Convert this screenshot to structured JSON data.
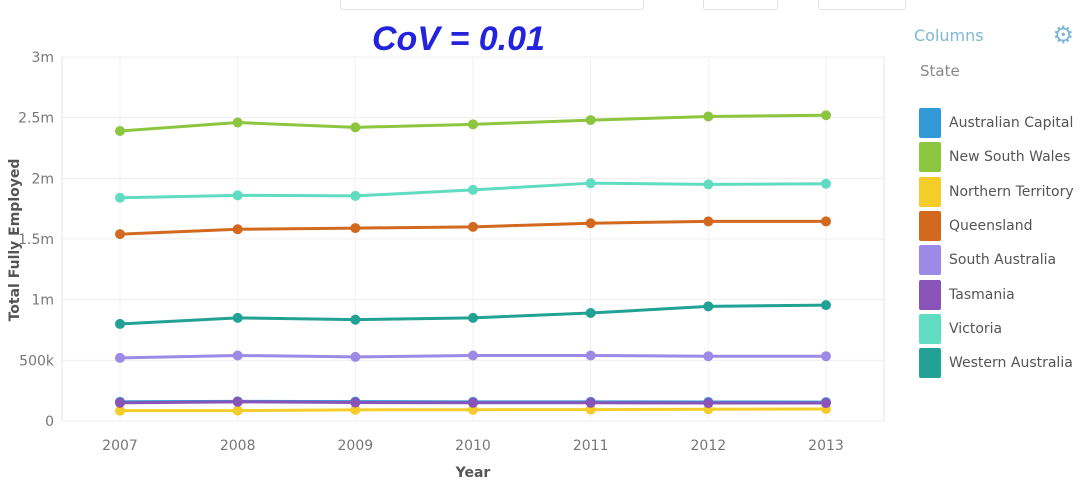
{
  "annotation": "CoV = 0.01",
  "legend": {
    "title": "Columns",
    "subtitle": "State",
    "icon": "gear-icon"
  },
  "chart_data": {
    "type": "line",
    "xlabel": "Year",
    "ylabel": "Total Fully Employed",
    "x": [
      "2007",
      "2008",
      "2009",
      "2010",
      "2011",
      "2012",
      "2013"
    ],
    "ylim": [
      0,
      3000000
    ],
    "yticks": [
      {
        "value": 0,
        "label": "0"
      },
      {
        "value": 500000,
        "label": "500k"
      },
      {
        "value": 1000000,
        "label": "1m"
      },
      {
        "value": 1500000,
        "label": "1.5m"
      },
      {
        "value": 2000000,
        "label": "2m"
      },
      {
        "value": 2500000,
        "label": "2.5m"
      },
      {
        "value": 3000000,
        "label": "3m"
      }
    ],
    "grid": true,
    "legend_position": "right",
    "series": [
      {
        "name": "Australian Capital Terr",
        "color": "#3399d6",
        "values": [
          158000,
          162000,
          160000,
          158000,
          158000,
          157000,
          156000
        ]
      },
      {
        "name": "New South Wales",
        "color": "#8cc63f",
        "values": [
          2390000,
          2460000,
          2420000,
          2445000,
          2480000,
          2510000,
          2520000
        ]
      },
      {
        "name": "Northern Territory",
        "color": "#f5cd2a",
        "values": [
          85000,
          86000,
          92000,
          93000,
          94000,
          97000,
          99000
        ]
      },
      {
        "name": "Queensland",
        "color": "#d2691e",
        "values": [
          1540000,
          1580000,
          1590000,
          1600000,
          1630000,
          1645000,
          1645000
        ]
      },
      {
        "name": "South Australia",
        "color": "#9b8be6",
        "values": [
          520000,
          540000,
          528000,
          540000,
          540000,
          534000,
          534000
        ]
      },
      {
        "name": "Tasmania",
        "color": "#8854b8",
        "values": [
          150000,
          158000,
          152000,
          150000,
          150000,
          148000,
          148000
        ]
      },
      {
        "name": "Victoria",
        "color": "#5fdcc1",
        "values": [
          1840000,
          1860000,
          1855000,
          1905000,
          1960000,
          1950000,
          1955000
        ]
      },
      {
        "name": "Western Australia",
        "color": "#22a195",
        "values": [
          800000,
          850000,
          835000,
          850000,
          890000,
          945000,
          955000
        ]
      }
    ]
  }
}
